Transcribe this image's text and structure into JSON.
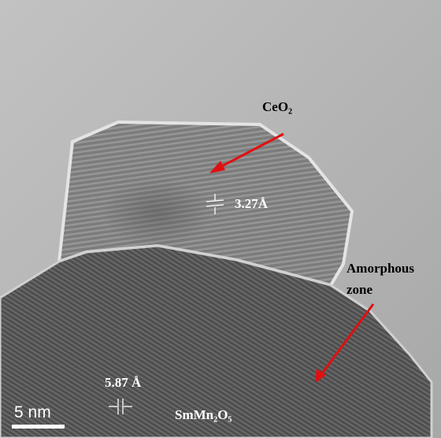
{
  "labels": {
    "particle": "CeO₂",
    "particle_spacing": "3.27Å",
    "amorphous": [
      "Amorphous",
      "zone"
    ],
    "substrate_spacing": "5.87 Å",
    "substrate": "SmMn₂O₅",
    "scale_bar": "5 nm"
  }
}
